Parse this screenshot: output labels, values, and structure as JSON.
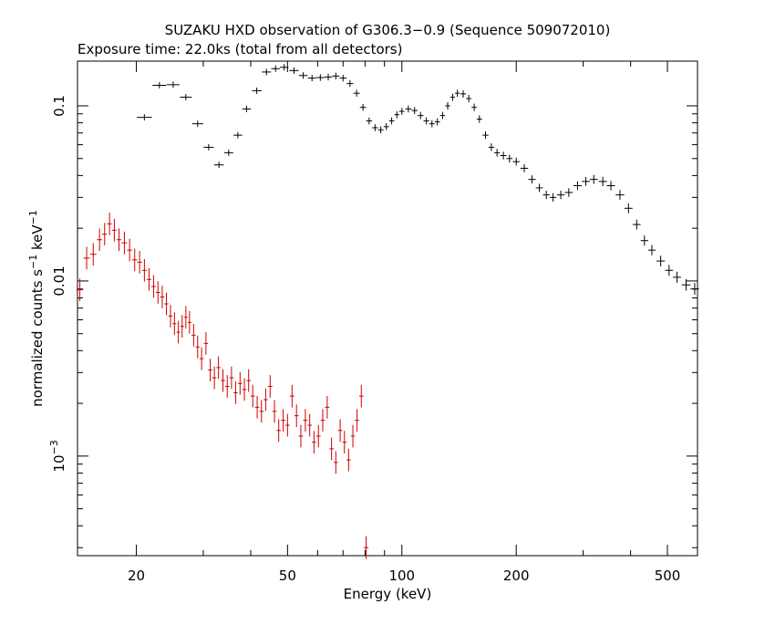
{
  "chart_data": {
    "type": "scatter",
    "title": "SUZAKU HXD observation of G306.3−0.9 (Sequence 509072010)",
    "subtitle": "Exposure time: 22.0ks (total from all detectors)",
    "xlabel": "Energy (keV)",
    "ylabel_main": "normalized counts s",
    "ylabel_sup1": "−1",
    "ylabel_mid": " keV",
    "ylabel_sup2": "−1",
    "x_scale": "log",
    "y_scale": "log",
    "xlim": [
      14,
      600
    ],
    "ylim": [
      0.00027,
      0.18
    ],
    "grid": false,
    "x_tick_labels": [
      {
        "value": 20,
        "label": "20"
      },
      {
        "value": 50,
        "label": "50"
      },
      {
        "value": 100,
        "label": "100"
      },
      {
        "value": 200,
        "label": "200"
      },
      {
        "value": 500,
        "label": "500"
      }
    ],
    "y_tick_labels": [
      {
        "value": 0.1,
        "label": "0.1"
      },
      {
        "value": 0.01,
        "label": "0.01"
      },
      {
        "value": 0.001,
        "label_base": "10",
        "label_exp": "−3"
      }
    ],
    "series": [
      {
        "color": "#000000",
        "points": [
          [
            21,
            0.086
          ],
          [
            23,
            0.131
          ],
          [
            25,
            0.132
          ],
          [
            27,
            0.112
          ],
          [
            29,
            0.079
          ],
          [
            31,
            0.058
          ],
          [
            33,
            0.046
          ],
          [
            35,
            0.054
          ],
          [
            37,
            0.068
          ],
          [
            39,
            0.096
          ],
          [
            41.5,
            0.122
          ],
          [
            44,
            0.156
          ],
          [
            46.5,
            0.163
          ],
          [
            49,
            0.166
          ],
          [
            52,
            0.159
          ],
          [
            55,
            0.149
          ],
          [
            58,
            0.144
          ],
          [
            61,
            0.145
          ],
          [
            64,
            0.146
          ],
          [
            67,
            0.148
          ],
          [
            70,
            0.144
          ],
          [
            73,
            0.134
          ],
          [
            76,
            0.118
          ],
          [
            79,
            0.098
          ],
          [
            82,
            0.082
          ],
          [
            85,
            0.075
          ],
          [
            88,
            0.073
          ],
          [
            91,
            0.076
          ],
          [
            94,
            0.082
          ],
          [
            97,
            0.089
          ],
          [
            100,
            0.093
          ],
          [
            104,
            0.096
          ],
          [
            108,
            0.094
          ],
          [
            112,
            0.088
          ],
          [
            116,
            0.082
          ],
          [
            120,
            0.079
          ],
          [
            124,
            0.081
          ],
          [
            128,
            0.088
          ],
          [
            132,
            0.1
          ],
          [
            136,
            0.112
          ],
          [
            140,
            0.118
          ],
          [
            145,
            0.117
          ],
          [
            150,
            0.11
          ],
          [
            155,
            0.098
          ],
          [
            160,
            0.084
          ],
          [
            166,
            0.068
          ],
          [
            172,
            0.058
          ],
          [
            178,
            0.054
          ],
          [
            185,
            0.052
          ],
          [
            192,
            0.05
          ],
          [
            200,
            0.048
          ],
          [
            210,
            0.044
          ],
          [
            220,
            0.038
          ],
          [
            230,
            0.034
          ],
          [
            240,
            0.031
          ],
          [
            250,
            0.03
          ],
          [
            262,
            0.031
          ],
          [
            275,
            0.032
          ],
          [
            290,
            0.035
          ],
          [
            305,
            0.037
          ],
          [
            320,
            0.038
          ],
          [
            338,
            0.037
          ],
          [
            355,
            0.035
          ],
          [
            375,
            0.031
          ],
          [
            395,
            0.026
          ],
          [
            415,
            0.021
          ],
          [
            435,
            0.017
          ],
          [
            455,
            0.015
          ],
          [
            480,
            0.013
          ],
          [
            505,
            0.0115
          ],
          [
            530,
            0.0105
          ],
          [
            560,
            0.0095
          ],
          [
            590,
            0.009
          ]
        ]
      },
      {
        "color": "#cc0000",
        "points": [
          [
            14.2,
            0.0089
          ],
          [
            14.8,
            0.0135
          ],
          [
            15.4,
            0.0142
          ],
          [
            16,
            0.0172
          ],
          [
            16.5,
            0.0185
          ],
          [
            17,
            0.0212
          ],
          [
            17.5,
            0.0195
          ],
          [
            18,
            0.0172
          ],
          [
            18.6,
            0.0165
          ],
          [
            19.2,
            0.015
          ],
          [
            19.8,
            0.0132
          ],
          [
            20.4,
            0.0128
          ],
          [
            21,
            0.0115
          ],
          [
            21.6,
            0.0102
          ],
          [
            22.2,
            0.0093
          ],
          [
            22.8,
            0.0086
          ],
          [
            23.4,
            0.0081
          ],
          [
            24,
            0.0074
          ],
          [
            24.6,
            0.0063
          ],
          [
            25.2,
            0.0057
          ],
          [
            25.8,
            0.0051
          ],
          [
            26.4,
            0.0055
          ],
          [
            27,
            0.0062
          ],
          [
            27.6,
            0.0058
          ],
          [
            28.3,
            0.0049
          ],
          [
            29,
            0.0042
          ],
          [
            29.7,
            0.0036
          ],
          [
            30.5,
            0.0044
          ],
          [
            31.3,
            0.0031
          ],
          [
            32.1,
            0.0028
          ],
          [
            32.9,
            0.0032
          ],
          [
            33.8,
            0.0027
          ],
          [
            34.7,
            0.0025
          ],
          [
            35.6,
            0.0028
          ],
          [
            36.5,
            0.0023
          ],
          [
            37.5,
            0.0026
          ],
          [
            38.5,
            0.0024
          ],
          [
            39.5,
            0.0027
          ],
          [
            40.5,
            0.0022
          ],
          [
            41.6,
            0.0019
          ],
          [
            42.7,
            0.0018
          ],
          [
            43.8,
            0.0021
          ],
          [
            45,
            0.0025
          ],
          [
            46.2,
            0.0018
          ],
          [
            47.4,
            0.0014
          ],
          [
            48.7,
            0.0016
          ],
          [
            50,
            0.0015
          ],
          [
            51.4,
            0.0022
          ],
          [
            52.8,
            0.0017
          ],
          [
            54.2,
            0.0013
          ],
          [
            55.7,
            0.0016
          ],
          [
            57.2,
            0.0015
          ],
          [
            58.7,
            0.0012
          ],
          [
            60.3,
            0.0013
          ],
          [
            61.9,
            0.0016
          ],
          [
            63.6,
            0.0019
          ],
          [
            65.3,
            0.0011
          ],
          [
            67,
            0.00092
          ],
          [
            68.8,
            0.0014
          ],
          [
            70.6,
            0.0012
          ],
          [
            72.4,
            0.00095
          ],
          [
            74.3,
            0.0013
          ],
          [
            76.2,
            0.0016
          ],
          [
            78.2,
            0.0022
          ],
          [
            80.5,
            0.0003
          ]
        ]
      }
    ]
  }
}
